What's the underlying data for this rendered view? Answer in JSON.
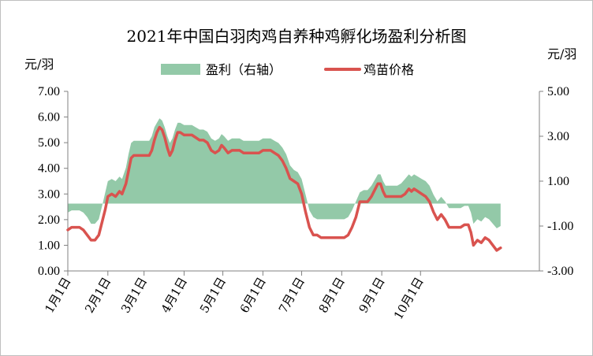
{
  "chart_data": {
    "type": "line",
    "title": "2021年中国白羽肉鸡自养种鸡孵化场盈利分析图",
    "ylabel_left": "元/羽",
    "ylabel_right": "元/羽",
    "legend": [
      {
        "name": "盈利（右轴）",
        "color": "#93C9A8",
        "kind": "area"
      },
      {
        "name": "鸡苗价格",
        "color": "#D9534F",
        "kind": "line"
      }
    ],
    "legend_position": "top",
    "left_axis": {
      "min": 0,
      "max": 7,
      "ticks": [
        "0.00",
        "1.00",
        "2.00",
        "3.00",
        "4.00",
        "5.00",
        "6.00",
        "7.00"
      ]
    },
    "right_axis": {
      "min": -3,
      "max": 5,
      "ticks": [
        "-3.00",
        "-1.00",
        "1.00",
        "3.00",
        "5.00"
      ]
    },
    "x_ticks": [
      "1月1日",
      "2月1日",
      "3月1日",
      "4月1日",
      "5月1日",
      "6月1日",
      "7月1日",
      "8月1日",
      "9月1日",
      "10月1日"
    ],
    "x_range_days": [
      0,
      365
    ],
    "series": [
      {
        "name": "鸡苗价格",
        "axis": "left",
        "points": [
          [
            0,
            1.6
          ],
          [
            3,
            1.7
          ],
          [
            6,
            1.7
          ],
          [
            9,
            1.7
          ],
          [
            12,
            1.6
          ],
          [
            15,
            1.4
          ],
          [
            18,
            1.2
          ],
          [
            21,
            1.2
          ],
          [
            24,
            1.4
          ],
          [
            27,
            2.0
          ],
          [
            29,
            2.4
          ],
          [
            31,
            2.9
          ],
          [
            34,
            3.0
          ],
          [
            37,
            2.9
          ],
          [
            40,
            3.1
          ],
          [
            42,
            3.0
          ],
          [
            45,
            3.4
          ],
          [
            47,
            3.9
          ],
          [
            49,
            4.4
          ],
          [
            51,
            4.5
          ],
          [
            54,
            4.5
          ],
          [
            57,
            4.5
          ],
          [
            60,
            4.5
          ],
          [
            63,
            4.5
          ],
          [
            65,
            4.7
          ],
          [
            67,
            5.1
          ],
          [
            69,
            5.4
          ],
          [
            71,
            5.6
          ],
          [
            73,
            5.5
          ],
          [
            75,
            5.2
          ],
          [
            77,
            4.8
          ],
          [
            79,
            4.5
          ],
          [
            81,
            4.7
          ],
          [
            83,
            5.1
          ],
          [
            85,
            5.4
          ],
          [
            87,
            5.4
          ],
          [
            90,
            5.3
          ],
          [
            93,
            5.3
          ],
          [
            96,
            5.3
          ],
          [
            99,
            5.2
          ],
          [
            102,
            5.1
          ],
          [
            105,
            5.1
          ],
          [
            108,
            5.0
          ],
          [
            111,
            4.7
          ],
          [
            114,
            4.6
          ],
          [
            117,
            4.7
          ],
          [
            119,
            4.9
          ],
          [
            121,
            4.8
          ],
          [
            124,
            4.6
          ],
          [
            127,
            4.7
          ],
          [
            130,
            4.7
          ],
          [
            133,
            4.7
          ],
          [
            136,
            4.6
          ],
          [
            139,
            4.6
          ],
          [
            142,
            4.6
          ],
          [
            145,
            4.6
          ],
          [
            148,
            4.6
          ],
          [
            151,
            4.7
          ],
          [
            154,
            4.7
          ],
          [
            157,
            4.7
          ],
          [
            160,
            4.6
          ],
          [
            163,
            4.5
          ],
          [
            166,
            4.3
          ],
          [
            169,
            4.0
          ],
          [
            172,
            3.6
          ],
          [
            175,
            3.5
          ],
          [
            178,
            3.4
          ],
          [
            181,
            3.0
          ],
          [
            184,
            2.3
          ],
          [
            187,
            1.7
          ],
          [
            190,
            1.4
          ],
          [
            193,
            1.4
          ],
          [
            196,
            1.3
          ],
          [
            199,
            1.3
          ],
          [
            202,
            1.3
          ],
          [
            205,
            1.3
          ],
          [
            208,
            1.3
          ],
          [
            211,
            1.3
          ],
          [
            214,
            1.3
          ],
          [
            217,
            1.4
          ],
          [
            220,
            1.7
          ],
          [
            223,
            2.1
          ],
          [
            226,
            2.7
          ],
          [
            229,
            2.7
          ],
          [
            232,
            2.7
          ],
          [
            235,
            2.9
          ],
          [
            238,
            3.2
          ],
          [
            240,
            3.4
          ],
          [
            242,
            3.4
          ],
          [
            244,
            3.1
          ],
          [
            246,
            2.9
          ],
          [
            249,
            2.9
          ],
          [
            252,
            2.9
          ],
          [
            255,
            2.9
          ],
          [
            258,
            2.9
          ],
          [
            261,
            3.0
          ],
          [
            264,
            3.2
          ],
          [
            266,
            3.1
          ],
          [
            268,
            3.2
          ],
          [
            271,
            3.1
          ],
          [
            274,
            3.0
          ],
          [
            277,
            2.9
          ],
          [
            280,
            2.7
          ],
          [
            283,
            2.3
          ],
          [
            286,
            2.0
          ],
          [
            289,
            2.2
          ],
          [
            292,
            2.0
          ],
          [
            295,
            1.7
          ],
          [
            298,
            1.7
          ],
          [
            301,
            1.7
          ],
          [
            304,
            1.7
          ],
          [
            307,
            1.8
          ],
          [
            310,
            1.8
          ],
          [
            312,
            1.5
          ],
          [
            314,
            1.0
          ],
          [
            317,
            1.2
          ],
          [
            320,
            1.1
          ],
          [
            323,
            1.3
          ],
          [
            326,
            1.2
          ],
          [
            329,
            1.0
          ],
          [
            332,
            0.8
          ],
          [
            335,
            0.9
          ]
        ]
      },
      {
        "name": "盈利（右轴）",
        "axis": "right",
        "points": [
          [
            0,
            -0.4
          ],
          [
            3,
            -0.3
          ],
          [
            6,
            -0.3
          ],
          [
            9,
            -0.3
          ],
          [
            12,
            -0.4
          ],
          [
            15,
            -0.6
          ],
          [
            18,
            -0.9
          ],
          [
            21,
            -0.9
          ],
          [
            24,
            -0.7
          ],
          [
            27,
            0.0
          ],
          [
            29,
            0.5
          ],
          [
            31,
            1.0
          ],
          [
            34,
            1.1
          ],
          [
            37,
            1.0
          ],
          [
            40,
            1.2
          ],
          [
            42,
            1.1
          ],
          [
            45,
            1.6
          ],
          [
            47,
            2.2
          ],
          [
            49,
            2.7
          ],
          [
            51,
            2.8
          ],
          [
            54,
            2.8
          ],
          [
            57,
            2.8
          ],
          [
            60,
            2.8
          ],
          [
            63,
            2.8
          ],
          [
            65,
            3.0
          ],
          [
            67,
            3.4
          ],
          [
            69,
            3.6
          ],
          [
            71,
            3.8
          ],
          [
            73,
            3.7
          ],
          [
            75,
            3.4
          ],
          [
            77,
            3.0
          ],
          [
            79,
            2.7
          ],
          [
            81,
            2.9
          ],
          [
            83,
            3.3
          ],
          [
            85,
            3.6
          ],
          [
            87,
            3.6
          ],
          [
            90,
            3.5
          ],
          [
            93,
            3.5
          ],
          [
            96,
            3.5
          ],
          [
            99,
            3.4
          ],
          [
            102,
            3.3
          ],
          [
            105,
            3.3
          ],
          [
            108,
            3.2
          ],
          [
            111,
            2.9
          ],
          [
            114,
            2.8
          ],
          [
            117,
            2.9
          ],
          [
            119,
            3.1
          ],
          [
            121,
            3.0
          ],
          [
            124,
            2.8
          ],
          [
            127,
            2.9
          ],
          [
            130,
            2.9
          ],
          [
            133,
            2.9
          ],
          [
            136,
            2.8
          ],
          [
            139,
            2.8
          ],
          [
            142,
            2.8
          ],
          [
            145,
            2.8
          ],
          [
            148,
            2.8
          ],
          [
            151,
            2.9
          ],
          [
            154,
            2.9
          ],
          [
            157,
            2.9
          ],
          [
            160,
            2.8
          ],
          [
            163,
            2.7
          ],
          [
            166,
            2.5
          ],
          [
            169,
            2.2
          ],
          [
            172,
            1.7
          ],
          [
            175,
            1.5
          ],
          [
            178,
            1.4
          ],
          [
            181,
            1.1
          ],
          [
            184,
            0.4
          ],
          [
            187,
            -0.3
          ],
          [
            190,
            -0.6
          ],
          [
            193,
            -0.7
          ],
          [
            196,
            -0.7
          ],
          [
            199,
            -0.7
          ],
          [
            202,
            -0.7
          ],
          [
            205,
            -0.7
          ],
          [
            208,
            -0.7
          ],
          [
            211,
            -0.7
          ],
          [
            214,
            -0.7
          ],
          [
            217,
            -0.6
          ],
          [
            220,
            -0.3
          ],
          [
            223,
            0.1
          ],
          [
            226,
            0.5
          ],
          [
            229,
            0.6
          ],
          [
            232,
            0.6
          ],
          [
            235,
            0.8
          ],
          [
            238,
            1.1
          ],
          [
            240,
            1.3
          ],
          [
            242,
            1.3
          ],
          [
            244,
            1.0
          ],
          [
            246,
            0.8
          ],
          [
            249,
            0.8
          ],
          [
            252,
            0.8
          ],
          [
            255,
            0.8
          ],
          [
            258,
            0.9
          ],
          [
            261,
            1.1
          ],
          [
            264,
            1.3
          ],
          [
            266,
            1.2
          ],
          [
            268,
            1.3
          ],
          [
            271,
            1.2
          ],
          [
            274,
            1.1
          ],
          [
            277,
            1.0
          ],
          [
            280,
            0.8
          ],
          [
            283,
            0.4
          ],
          [
            286,
            0.1
          ],
          [
            289,
            0.3
          ],
          [
            292,
            0.1
          ],
          [
            295,
            -0.2
          ],
          [
            298,
            -0.2
          ],
          [
            301,
            -0.2
          ],
          [
            304,
            -0.2
          ],
          [
            307,
            -0.1
          ],
          [
            310,
            -0.1
          ],
          [
            312,
            -0.4
          ],
          [
            314,
            -0.9
          ],
          [
            317,
            -0.7
          ],
          [
            320,
            -0.8
          ],
          [
            323,
            -0.6
          ],
          [
            326,
            -0.7
          ],
          [
            329,
            -0.9
          ],
          [
            332,
            -1.1
          ],
          [
            335,
            -1.0
          ]
        ]
      }
    ]
  }
}
